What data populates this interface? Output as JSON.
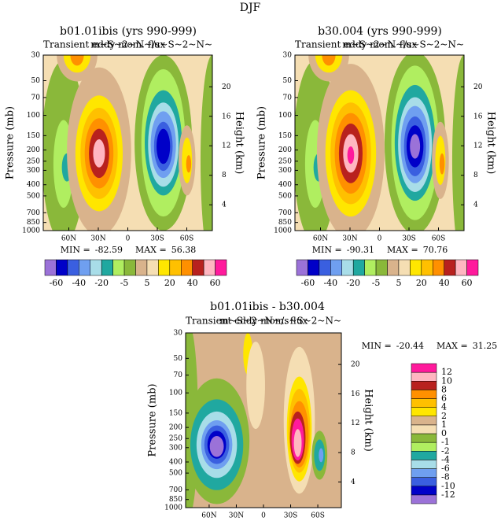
{
  "title": "DJF",
  "chart_data": [
    {
      "type": "contour",
      "title": "b01.01ibis (yrs 990-999)",
      "subtitle_left": "Transient eddy mom. flux",
      "subtitle_right": "m~S~2~N~/s~S~2~N~",
      "ylabel": "Pressure (mb)",
      "y2label": "Height (km)",
      "xlim": [
        86,
        -86
      ],
      "xticks": [
        {
          "value": 60,
          "label": "60N"
        },
        {
          "value": 30,
          "label": "30N"
        },
        0,
        {
          "value": -30,
          "label": "30S"
        },
        {
          "value": -60,
          "label": "60S"
        }
      ],
      "ylim": [
        1000,
        30
      ],
      "yscale": "log",
      "yticks": [
        30,
        50,
        70,
        100,
        150,
        200,
        250,
        300,
        400,
        500,
        700,
        850,
        1000
      ],
      "y2lim": [
        0.5,
        24.3
      ],
      "y2ticks": [
        4,
        8,
        12,
        16,
        20
      ],
      "min_label": "MIN =",
      "min": -82.59,
      "max_label": "MAX =",
      "max": 56.38,
      "colorbar": {
        "orientation": "horizontal",
        "labels": [
          -60,
          -40,
          -20,
          -5,
          5,
          20,
          40,
          60
        ],
        "colors": [
          "#9b72d8",
          "#0000c8",
          "#3a5fe0",
          "#6f9ff0",
          "#a8dde8",
          "#20a8a0",
          "#b0ee60",
          "#8ab83a",
          "#d9b38c",
          "#f5deb3",
          "#ffe600",
          "#ffc000",
          "#ff9000",
          "#b8211e",
          "#ffb6c1",
          "#ff1a9c"
        ]
      }
    },
    {
      "type": "contour",
      "title": "b30.004 (yrs 990-999)",
      "subtitle_left": "Transient eddy mom. flux",
      "subtitle_right": "m~S~2~N~/s~S~2~N~",
      "ylabel": "Pressure (mb)",
      "y2label": "Height (km)",
      "xlim": [
        86,
        -86
      ],
      "xticks": [
        {
          "value": 60,
          "label": "60N"
        },
        {
          "value": 30,
          "label": "30N"
        },
        0,
        {
          "value": -30,
          "label": "30S"
        },
        {
          "value": -60,
          "label": "60S"
        }
      ],
      "ylim": [
        1000,
        30
      ],
      "yscale": "log",
      "yticks": [
        30,
        50,
        70,
        100,
        150,
        200,
        250,
        300,
        400,
        500,
        700,
        850,
        1000
      ],
      "y2lim": [
        0.5,
        24.3
      ],
      "y2ticks": [
        4,
        8,
        12,
        16,
        20
      ],
      "min_label": "MIN =",
      "min": -90.31,
      "max_label": "MAX =",
      "max": 70.76,
      "colorbar": {
        "orientation": "horizontal",
        "labels": [
          -60,
          -40,
          -20,
          -5,
          5,
          20,
          40,
          60
        ],
        "colors": [
          "#9b72d8",
          "#0000c8",
          "#3a5fe0",
          "#6f9ff0",
          "#a8dde8",
          "#20a8a0",
          "#b0ee60",
          "#8ab83a",
          "#d9b38c",
          "#f5deb3",
          "#ffe600",
          "#ffc000",
          "#ff9000",
          "#b8211e",
          "#ffb6c1",
          "#ff1a9c"
        ]
      }
    },
    {
      "type": "contour",
      "title": "b01.01ibis - b30.004",
      "subtitle_left": "Transient eddy mom. flux",
      "subtitle_right": "m~S~2~N~/s~S~2~N~",
      "ylabel": "Pressure (mb)",
      "y2label": "Height (km)",
      "xlim": [
        86,
        -86
      ],
      "xticks": [
        {
          "value": 60,
          "label": "60N"
        },
        {
          "value": 30,
          "label": "30N"
        },
        0,
        {
          "value": -30,
          "label": "30S"
        },
        {
          "value": -60,
          "label": "60S"
        }
      ],
      "ylim": [
        1000,
        30
      ],
      "yscale": "log",
      "yticks": [
        30,
        50,
        70,
        100,
        150,
        200,
        250,
        300,
        400,
        500,
        700,
        850,
        1000
      ],
      "y2lim": [
        0.5,
        24.3
      ],
      "y2ticks": [
        4,
        8,
        12,
        16,
        20
      ],
      "min_label": "MIN =",
      "min": -20.44,
      "max_label": "MAX =",
      "max": 31.25,
      "colorbar": {
        "orientation": "vertical",
        "labels": [
          -12,
          -10,
          -8,
          -6,
          -4,
          -2,
          -1,
          0,
          1,
          2,
          4,
          6,
          8,
          10,
          12
        ],
        "colors": [
          "#9b72d8",
          "#0000c8",
          "#3a5fe0",
          "#6f9ff0",
          "#a8dde8",
          "#20a8a0",
          "#b0ee60",
          "#8ab83a",
          "#f5deb3",
          "#d9b38c",
          "#ffe600",
          "#ffc000",
          "#ff9000",
          "#b8211e",
          "#ffb6c1",
          "#ff1a9c"
        ]
      }
    }
  ]
}
